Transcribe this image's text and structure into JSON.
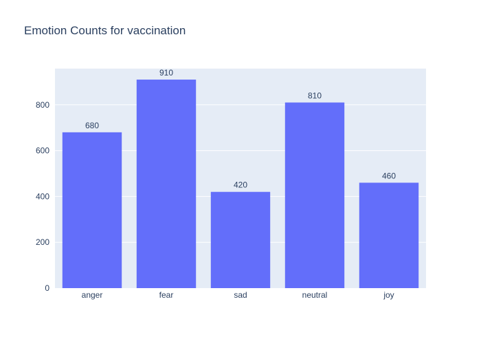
{
  "chart_data": {
    "type": "bar",
    "title": "Emotion Counts for vaccination",
    "categories": [
      "anger",
      "fear",
      "sad",
      "neutral",
      "joy"
    ],
    "values": [
      680,
      910,
      420,
      810,
      460
    ],
    "xlabel": "",
    "ylabel": "",
    "ylim": [
      0,
      958
    ],
    "yticks": [
      0,
      200,
      400,
      600,
      800
    ],
    "grid": true,
    "legend": "none",
    "colors": {
      "bar": "#636efa",
      "plot_background": "#e5ecf6",
      "gridline": "#ffffff",
      "text": "#2a3f5f"
    }
  }
}
